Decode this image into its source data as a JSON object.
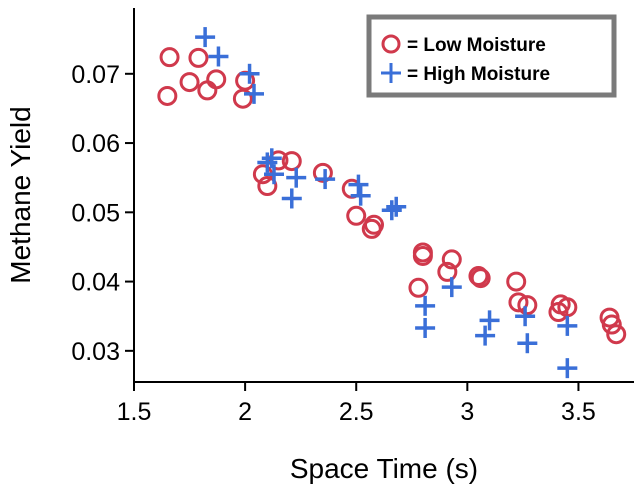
{
  "chart_data": {
    "type": "scatter",
    "xlabel": "Space Time (s)",
    "ylabel": "Methane Yield",
    "xlim": [
      1.5,
      3.75
    ],
    "ylim": [
      0.0255,
      0.0795
    ],
    "x_ticks": [
      "1.5",
      "2",
      "2.5",
      "3",
      "3.5"
    ],
    "y_ticks": [
      "0.03",
      "0.04",
      "0.05",
      "0.06",
      "0.07"
    ],
    "legend_position": "top-right",
    "series": [
      {
        "name": "= Low Moisture",
        "marker": "circle",
        "color": "#d0394c",
        "points": [
          [
            1.65,
            0.0668
          ],
          [
            1.66,
            0.0724
          ],
          [
            1.75,
            0.0688
          ],
          [
            1.79,
            0.0723
          ],
          [
            1.83,
            0.0676
          ],
          [
            1.87,
            0.0692
          ],
          [
            1.99,
            0.0664
          ],
          [
            2.0,
            0.069
          ],
          [
            2.08,
            0.0555
          ],
          [
            2.1,
            0.0538
          ],
          [
            2.15,
            0.0575
          ],
          [
            2.21,
            0.0574
          ],
          [
            2.35,
            0.0557
          ],
          [
            2.48,
            0.0534
          ],
          [
            2.5,
            0.0495
          ],
          [
            2.57,
            0.0476
          ],
          [
            2.58,
            0.0482
          ],
          [
            2.78,
            0.0391
          ],
          [
            2.8,
            0.0442
          ],
          [
            2.8,
            0.0437
          ],
          [
            2.91,
            0.0414
          ],
          [
            2.93,
            0.0432
          ],
          [
            3.05,
            0.0408
          ],
          [
            3.06,
            0.0405
          ],
          [
            3.22,
            0.04
          ],
          [
            3.23,
            0.037
          ],
          [
            3.27,
            0.0366
          ],
          [
            3.41,
            0.0356
          ],
          [
            3.42,
            0.0367
          ],
          [
            3.45,
            0.0363
          ],
          [
            3.64,
            0.0348
          ],
          [
            3.65,
            0.0338
          ],
          [
            3.67,
            0.0324
          ]
        ]
      },
      {
        "name": "= High Moisture",
        "marker": "plus",
        "color": "#3a6fd8",
        "points": [
          [
            1.82,
            0.0753
          ],
          [
            1.88,
            0.0725
          ],
          [
            2.02,
            0.07
          ],
          [
            2.04,
            0.0671
          ],
          [
            2.1,
            0.0572
          ],
          [
            2.12,
            0.0578
          ],
          [
            2.13,
            0.0555
          ],
          [
            2.21,
            0.052
          ],
          [
            2.23,
            0.055
          ],
          [
            2.36,
            0.0548
          ],
          [
            2.51,
            0.054
          ],
          [
            2.52,
            0.0524
          ],
          [
            2.66,
            0.0503
          ],
          [
            2.68,
            0.0508
          ],
          [
            2.81,
            0.0365
          ],
          [
            2.81,
            0.0333
          ],
          [
            2.93,
            0.0392
          ],
          [
            3.08,
            0.0322
          ],
          [
            3.1,
            0.0344
          ],
          [
            3.26,
            0.035
          ],
          [
            3.27,
            0.0311
          ],
          [
            3.45,
            0.0336
          ],
          [
            3.45,
            0.0275
          ]
        ]
      }
    ]
  }
}
